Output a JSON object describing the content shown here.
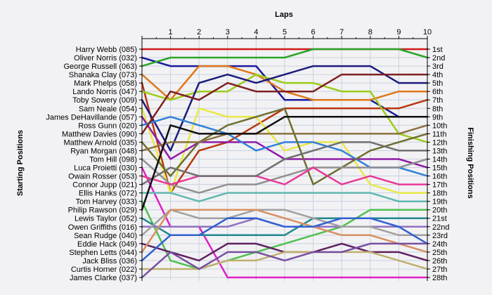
{
  "chart_data": {
    "type": "line",
    "title": "",
    "xlabel": "Laps",
    "ylabel_left": "Starting Positions",
    "ylabel_right": "Finishing Positions",
    "laps": [
      1,
      2,
      3,
      4,
      5,
      6,
      7,
      8,
      9,
      10
    ],
    "x_tick_labels": [
      "1",
      "2",
      "3",
      "4",
      "5",
      "6",
      "7",
      "8",
      "9",
      "10"
    ],
    "start_labels": [
      "Harry Webb (085)",
      "Oliver Norris (032)",
      "George Russell (063)",
      "Shanaka Clay (073)",
      "Mark Phelps (058)",
      "Lando Norris (047)",
      "Toby Sowery (009)",
      "Sam Neale (054)",
      "James DeHavillande (057)",
      "Ross Gunn (020)",
      "Matthew Davies (090)",
      "Matthew Arnold (035)",
      "Ryan Morgan (048)",
      "Tom Hill (098)",
      "Luca Proietti (030)",
      "Owain Rosser (053)",
      "Connor Jupp (021)",
      "Ellis Hanks (072)",
      "Tom Harvey (033)",
      "Philip Rawson (029)",
      "Lewis Taylor (052)",
      "Owen Griffiths (016)",
      "Sean Rudge (040)",
      "Eddie Hack (049)",
      "Stephen Letts (044)",
      "Jack Bliss (036)",
      "Curtis Horner (022)",
      "James Clarke (037)"
    ],
    "finish_labels": [
      "1st",
      "2nd",
      "3rd",
      "4th",
      "5th",
      "6th",
      "7th",
      "8th",
      "9th",
      "10th",
      "11th",
      "12th",
      "13th",
      "14th",
      "15th",
      "16th",
      "17th",
      "18th",
      "19th",
      "20th",
      "21st",
      "22nd",
      "23rd",
      "24th",
      "25th",
      "26th",
      "27th",
      "28th"
    ],
    "series": [
      {
        "color": "#d01818",
        "positions": [
          1,
          1,
          1,
          1,
          1,
          1,
          1,
          1,
          1,
          1,
          1
        ]
      },
      {
        "color": "#1a1aa0",
        "positions": [
          2,
          3,
          3,
          3,
          3,
          7,
          7,
          7,
          7,
          9,
          9
        ]
      },
      {
        "color": "#2aa52a",
        "positions": [
          3,
          2,
          2,
          2,
          2,
          2,
          1,
          1,
          1,
          1,
          2
        ]
      },
      {
        "color": "#e07818",
        "positions": [
          4,
          7,
          3,
          3,
          4,
          6,
          7,
          7,
          7,
          6,
          6
        ]
      },
      {
        "color": "#b83810",
        "positions": [
          5,
          18,
          13,
          12,
          10,
          8,
          8,
          8,
          8,
          8,
          7
        ]
      },
      {
        "color": "#9ccc18",
        "positions": [
          6,
          7,
          6,
          6,
          4,
          5,
          5,
          6,
          6,
          11,
          12
        ]
      },
      {
        "color": "#1c1c7c",
        "positions": [
          7,
          13,
          5,
          4,
          5,
          4,
          3,
          3,
          3,
          5,
          5
        ]
      },
      {
        "color": "#e8e848",
        "positions": [
          8,
          18,
          8,
          9,
          9,
          13,
          12,
          12,
          17,
          18,
          18
        ]
      },
      {
        "color": "#901ca8",
        "positions": [
          9,
          14,
          12,
          12,
          12,
          14,
          14,
          14,
          14,
          14,
          15
        ]
      },
      {
        "color": "#3080d8",
        "positions": [
          10,
          9,
          10,
          11,
          13,
          12,
          12,
          13,
          15,
          15,
          16
        ]
      },
      {
        "color": "#802020",
        "positions": [
          11,
          6,
          7,
          5,
          6,
          6,
          6,
          4,
          4,
          4,
          4
        ]
      },
      {
        "color": "#6e6e30",
        "positions": [
          12,
          16,
          12,
          10,
          9,
          8,
          17,
          15,
          13,
          12,
          11
        ]
      },
      {
        "color": "#8a7040",
        "positions": [
          13,
          12,
          12,
          11,
          11,
          11,
          11,
          11,
          11,
          11,
          10
        ]
      },
      {
        "color": "#909090",
        "positions": [
          14,
          17,
          18,
          17,
          17,
          16,
          15,
          15,
          15,
          15,
          14
        ]
      },
      {
        "color": "#e020c8",
        "positions": [
          15,
          22,
          22,
          28,
          28,
          28,
          28,
          28,
          28,
          28,
          28
        ]
      },
      {
        "color": "#e83898",
        "positions": [
          16,
          17,
          16,
          16,
          16,
          17,
          15,
          17,
          16,
          17,
          17
        ]
      },
      {
        "color": "#707070",
        "positions": [
          17,
          15,
          16,
          16,
          16,
          14,
          13,
          12,
          12,
          13,
          13
        ]
      },
      {
        "color": "#60b8b0",
        "positions": [
          18,
          18,
          19,
          18,
          18,
          18,
          18,
          18,
          18,
          19,
          19
        ]
      },
      {
        "color": "#50c050",
        "positions": [
          19,
          26,
          27,
          26,
          25,
          24,
          23,
          22,
          20,
          20,
          20
        ]
      },
      {
        "color": "#101010",
        "positions": [
          20,
          10,
          11,
          11,
          11,
          9,
          9,
          9,
          9,
          9,
          9
        ]
      },
      {
        "color": "#208890",
        "positions": [
          21,
          23,
          23,
          23,
          23,
          23,
          21,
          21,
          21,
          21,
          21
        ]
      },
      {
        "color": "#9070c0",
        "positions": [
          22,
          22,
          22,
          22,
          21,
          22,
          22,
          22,
          22,
          22,
          22
        ]
      },
      {
        "color": "#a0a0a0",
        "positions": [
          23,
          20,
          21,
          21,
          20,
          20,
          21,
          22,
          22,
          23,
          23
        ]
      },
      {
        "color": "#602060",
        "positions": [
          24,
          25,
          26,
          24,
          24,
          25,
          25,
          24,
          25,
          25,
          26
        ]
      },
      {
        "color": "#d89060",
        "positions": [
          25,
          20,
          20,
          20,
          20,
          21,
          22,
          23,
          23,
          24,
          25
        ]
      },
      {
        "color": "#3060d0",
        "positions": [
          26,
          23,
          23,
          21,
          21,
          22,
          22,
          21,
          21,
          22,
          24
        ]
      },
      {
        "color": "#c0b070",
        "positions": [
          27,
          27,
          27,
          26,
          26,
          25,
          25,
          25,
          25,
          26,
          27
        ]
      },
      {
        "color": "#7850a0",
        "positions": [
          28,
          25,
          27,
          25,
          25,
          26,
          25,
          25,
          24,
          24,
          24
        ]
      }
    ]
  }
}
